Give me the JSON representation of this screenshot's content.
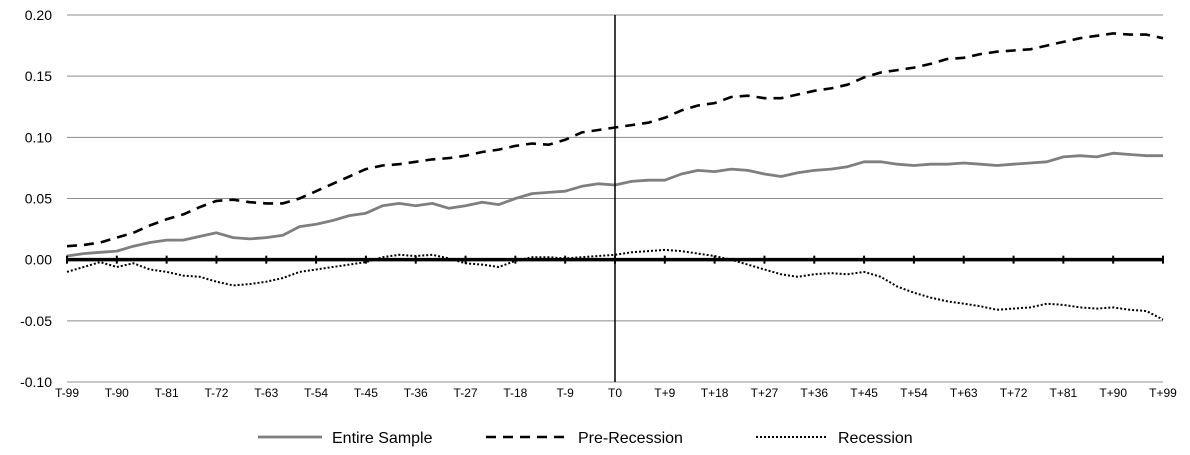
{
  "chart_data": {
    "type": "line",
    "title": "",
    "xlabel": "",
    "ylabel": "",
    "ylim": [
      -0.1,
      0.2
    ],
    "xlim": [
      -99,
      99
    ],
    "yticks": [
      -0.1,
      -0.05,
      0.0,
      0.05,
      0.1,
      0.15,
      0.2
    ],
    "ytick_labels": [
      "-0.10",
      "-0.05",
      "0.00",
      "0.05",
      "0.10",
      "0.15",
      "0.20"
    ],
    "xtick_values": [
      -99,
      -90,
      -81,
      -72,
      -63,
      -54,
      -45,
      -36,
      -27,
      -18,
      -9,
      0,
      9,
      18,
      27,
      36,
      45,
      54,
      63,
      72,
      81,
      90,
      99
    ],
    "xtick_labels": [
      "T-99",
      "T-90",
      "T-81",
      "T-72",
      "T-63",
      "T-54",
      "T-45",
      "T-36",
      "T-27",
      "T-18",
      "T-9",
      "T0",
      "T+9",
      "T+18",
      "T+27",
      "T+36",
      "T+45",
      "T+54",
      "T+63",
      "T+72",
      "T+81",
      "T+90",
      "T+99"
    ],
    "grid": true,
    "reference_lines": {
      "y_zero": true,
      "x_zero": true
    },
    "legend_position": "bottom",
    "series": [
      {
        "name": "Entire Sample",
        "style": "solid",
        "color": "#7f7f7f",
        "x": [
          -99,
          -96,
          -93,
          -90,
          -87,
          -84,
          -81,
          -78,
          -75,
          -72,
          -69,
          -66,
          -63,
          -60,
          -57,
          -54,
          -51,
          -48,
          -45,
          -42,
          -39,
          -36,
          -33,
          -30,
          -27,
          -24,
          -21,
          -18,
          -15,
          -12,
          -9,
          -6,
          -3,
          0,
          3,
          6,
          9,
          12,
          15,
          18,
          21,
          24,
          27,
          30,
          33,
          36,
          39,
          42,
          45,
          48,
          51,
          54,
          57,
          60,
          63,
          66,
          69,
          72,
          75,
          78,
          81,
          84,
          87,
          90,
          93,
          96,
          99
        ],
        "values": [
          0.003,
          0.005,
          0.006,
          0.007,
          0.011,
          0.014,
          0.016,
          0.016,
          0.019,
          0.022,
          0.018,
          0.017,
          0.018,
          0.02,
          0.027,
          0.029,
          0.032,
          0.036,
          0.038,
          0.044,
          0.046,
          0.044,
          0.046,
          0.042,
          0.044,
          0.047,
          0.045,
          0.05,
          0.054,
          0.055,
          0.056,
          0.06,
          0.062,
          0.061,
          0.064,
          0.065,
          0.065,
          0.07,
          0.073,
          0.072,
          0.074,
          0.073,
          0.07,
          0.068,
          0.071,
          0.073,
          0.074,
          0.076,
          0.08,
          0.08,
          0.078,
          0.077,
          0.078,
          0.078,
          0.079,
          0.078,
          0.077,
          0.078,
          0.079,
          0.08,
          0.084,
          0.085,
          0.084,
          0.087,
          0.086,
          0.085,
          0.085
        ]
      },
      {
        "name": "Pre-Recession",
        "style": "dashed",
        "color": "#000000",
        "x": [
          -99,
          -96,
          -93,
          -90,
          -87,
          -84,
          -81,
          -78,
          -75,
          -72,
          -69,
          -66,
          -63,
          -60,
          -57,
          -54,
          -51,
          -48,
          -45,
          -42,
          -39,
          -36,
          -33,
          -30,
          -27,
          -24,
          -21,
          -18,
          -15,
          -12,
          -9,
          -6,
          -3,
          0,
          3,
          6,
          9,
          12,
          15,
          18,
          21,
          24,
          27,
          30,
          33,
          36,
          39,
          42,
          45,
          48,
          51,
          54,
          57,
          60,
          63,
          66,
          69,
          72,
          75,
          78,
          81,
          84,
          87,
          90,
          93,
          96,
          99
        ],
        "values": [
          0.011,
          0.012,
          0.014,
          0.018,
          0.022,
          0.028,
          0.033,
          0.037,
          0.043,
          0.048,
          0.049,
          0.047,
          0.046,
          0.046,
          0.05,
          0.056,
          0.062,
          0.068,
          0.074,
          0.077,
          0.078,
          0.08,
          0.082,
          0.083,
          0.085,
          0.088,
          0.09,
          0.093,
          0.095,
          0.094,
          0.098,
          0.104,
          0.106,
          0.108,
          0.11,
          0.112,
          0.116,
          0.122,
          0.126,
          0.128,
          0.133,
          0.134,
          0.132,
          0.132,
          0.135,
          0.138,
          0.14,
          0.143,
          0.149,
          0.153,
          0.155,
          0.157,
          0.16,
          0.164,
          0.165,
          0.168,
          0.17,
          0.171,
          0.172,
          0.175,
          0.178,
          0.181,
          0.183,
          0.185,
          0.184,
          0.184,
          0.181
        ]
      },
      {
        "name": "Recession",
        "style": "dotted",
        "color": "#000000",
        "x": [
          -99,
          -96,
          -93,
          -90,
          -87,
          -84,
          -81,
          -78,
          -75,
          -72,
          -69,
          -66,
          -63,
          -60,
          -57,
          -54,
          -51,
          -48,
          -45,
          -42,
          -39,
          -36,
          -33,
          -30,
          -27,
          -24,
          -21,
          -18,
          -15,
          -12,
          -9,
          -6,
          -3,
          0,
          3,
          6,
          9,
          12,
          15,
          18,
          21,
          24,
          27,
          30,
          33,
          36,
          39,
          42,
          45,
          48,
          51,
          54,
          57,
          60,
          63,
          66,
          69,
          72,
          75,
          78,
          81,
          84,
          87,
          90,
          93,
          96,
          99
        ],
        "values": [
          -0.01,
          -0.006,
          -0.002,
          -0.006,
          -0.003,
          -0.008,
          -0.01,
          -0.013,
          -0.014,
          -0.018,
          -0.021,
          -0.02,
          -0.018,
          -0.015,
          -0.01,
          -0.008,
          -0.006,
          -0.004,
          -0.002,
          0.002,
          0.004,
          0.003,
          0.004,
          0.001,
          -0.003,
          -0.004,
          -0.006,
          -0.001,
          0.002,
          0.002,
          0.001,
          0.002,
          0.003,
          0.004,
          0.006,
          0.007,
          0.008,
          0.007,
          0.005,
          0.003,
          0.0,
          -0.004,
          -0.008,
          -0.012,
          -0.014,
          -0.012,
          -0.011,
          -0.012,
          -0.01,
          -0.014,
          -0.022,
          -0.027,
          -0.031,
          -0.034,
          -0.036,
          -0.038,
          -0.041,
          -0.04,
          -0.039,
          -0.036,
          -0.037,
          -0.039,
          -0.04,
          -0.039,
          -0.041,
          -0.042,
          -0.049
        ]
      }
    ]
  }
}
